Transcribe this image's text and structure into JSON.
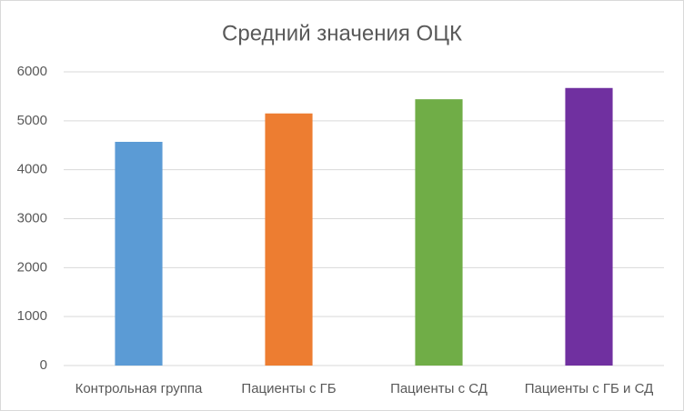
{
  "chart_data": {
    "type": "bar",
    "title": "Средний значения ОЦК",
    "categories": [
      "Контрольная группа",
      "Пациенты с ГБ",
      "Пациенты с СД",
      "Пациенты с ГБ и СД"
    ],
    "values": [
      4570,
      5150,
      5440,
      5670
    ],
    "colors": [
      "#5b9bd5",
      "#ed7d31",
      "#70ad47",
      "#7030a0"
    ],
    "ylim": [
      0,
      6000
    ],
    "yticks": [
      0,
      1000,
      2000,
      3000,
      4000,
      5000,
      6000
    ],
    "grid": true
  }
}
